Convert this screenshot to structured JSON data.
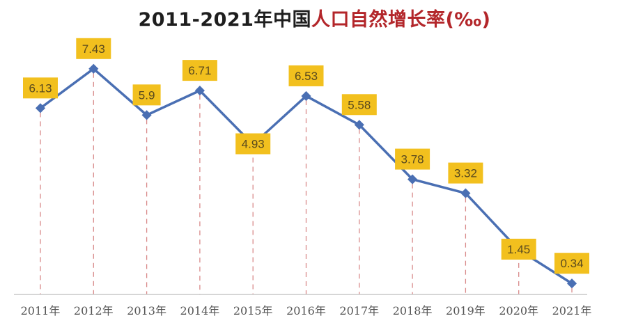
{
  "title": {
    "part_black": "2011-2021年中国",
    "part_red": "人口自然增长率(‰)"
  },
  "colors": {
    "line": "#4a6fb3",
    "label_bg": "#f2c01e",
    "label_text": "#5a4a1e",
    "drop_line": "#d98a8a",
    "axis": "#c8c8c8",
    "title_black": "#1e1e1e",
    "title_red": "#b3262a"
  },
  "chart_data": {
    "type": "line",
    "title": "2011-2021年中国人口自然增长率(‰)",
    "xlabel": "",
    "ylabel": "",
    "categories": [
      "2011年",
      "2012年",
      "2013年",
      "2014年",
      "2015年",
      "2016年",
      "2017年",
      "2018年",
      "2019年",
      "2020年",
      "2021年"
    ],
    "series": [
      {
        "name": "人口自然增长率(‰)",
        "values": [
          6.13,
          7.43,
          5.9,
          6.71,
          4.93,
          6.53,
          5.58,
          3.78,
          3.32,
          1.45,
          0.34
        ]
      }
    ],
    "data_labels": [
      "6.13",
      "7.43",
      "5.9",
      "6.71",
      "4.93",
      "6.53",
      "5.58",
      "3.78",
      "3.32",
      "1.45",
      "0.34"
    ],
    "ylim": [
      0,
      8
    ],
    "grid": false,
    "legend": "none",
    "annotations": "dashed vertical drop lines from each point to x-axis; yellow boxed data labels"
  }
}
